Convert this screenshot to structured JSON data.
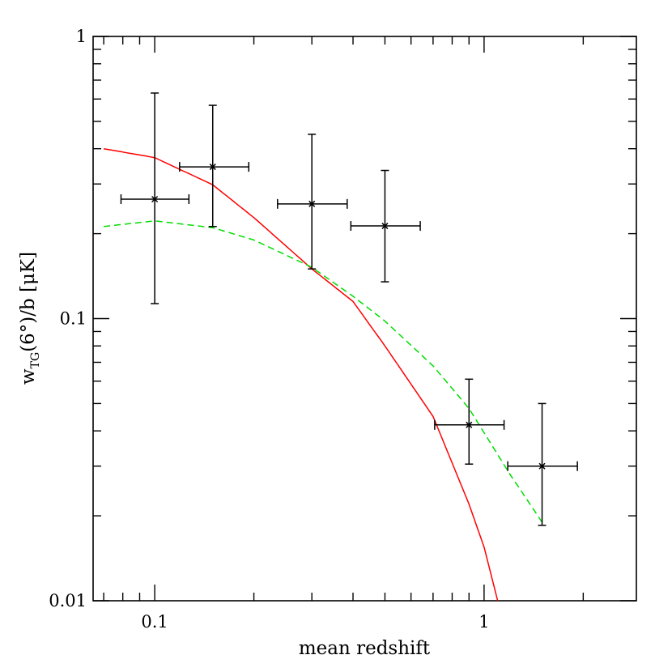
{
  "chart_data": {
    "type": "scatter",
    "title": "",
    "xlabel": "mean redshift",
    "ylabel": "w_TG(6°)/b  [μK]",
    "xscale": "log",
    "yscale": "log",
    "xlim": [
      0.065,
      2.9
    ],
    "ylim": [
      0.01,
      1
    ],
    "xticks": [
      {
        "value": 0.1,
        "label": "0.1"
      },
      {
        "value": 1,
        "label": "1"
      }
    ],
    "yticks": [
      {
        "value": 0.01,
        "label": "0.01"
      },
      {
        "value": 0.1,
        "label": "0.1"
      },
      {
        "value": 1,
        "label": "1"
      }
    ],
    "grid": false,
    "colors": {
      "data": "#000000",
      "model_1": "#ff0000",
      "model_2": "#00dd00"
    },
    "series": [
      {
        "kind": "errorbars",
        "marker": "x",
        "points": [
          {
            "x": 0.1,
            "y": 0.265,
            "xerr": [
              0.079,
              0.127
            ],
            "yerr": [
              0.113,
              0.63
            ]
          },
          {
            "x": 0.15,
            "y": 0.345,
            "xerr": [
              0.119,
              0.193
            ],
            "yerr": [
              0.212,
              0.57
            ]
          },
          {
            "x": 0.3,
            "y": 0.255,
            "xerr": [
              0.236,
              0.384
            ],
            "yerr": [
              0.15,
              0.45
            ]
          },
          {
            "x": 0.5,
            "y": 0.213,
            "xerr": [
              0.394,
              0.64
            ],
            "yerr": [
              0.135,
              0.335
            ]
          },
          {
            "x": 0.9,
            "y": 0.042,
            "xerr": [
              0.708,
              1.15
            ],
            "yerr": [
              0.0305,
              0.061
            ]
          },
          {
            "x": 1.5,
            "y": 0.03,
            "xerr": [
              1.18,
              1.92
            ],
            "yerr": [
              0.0185,
              0.05
            ]
          }
        ]
      },
      {
        "kind": "line",
        "style": "solid",
        "color": "#ff0000",
        "x": [
          0.07,
          0.1,
          0.15,
          0.2,
          0.3,
          0.4,
          0.5,
          0.7,
          0.9,
          1.0,
          1.1
        ],
        "y": [
          0.4,
          0.372,
          0.298,
          0.228,
          0.15,
          0.115,
          0.08,
          0.045,
          0.022,
          0.0155,
          0.01
        ]
      },
      {
        "kind": "line",
        "style": "dashed",
        "color": "#00dd00",
        "x": [
          0.07,
          0.1,
          0.15,
          0.2,
          0.3,
          0.4,
          0.5,
          0.7,
          0.9,
          1.2,
          1.5
        ],
        "y": [
          0.212,
          0.222,
          0.21,
          0.19,
          0.152,
          0.12,
          0.098,
          0.068,
          0.048,
          0.028,
          0.019
        ]
      }
    ]
  }
}
